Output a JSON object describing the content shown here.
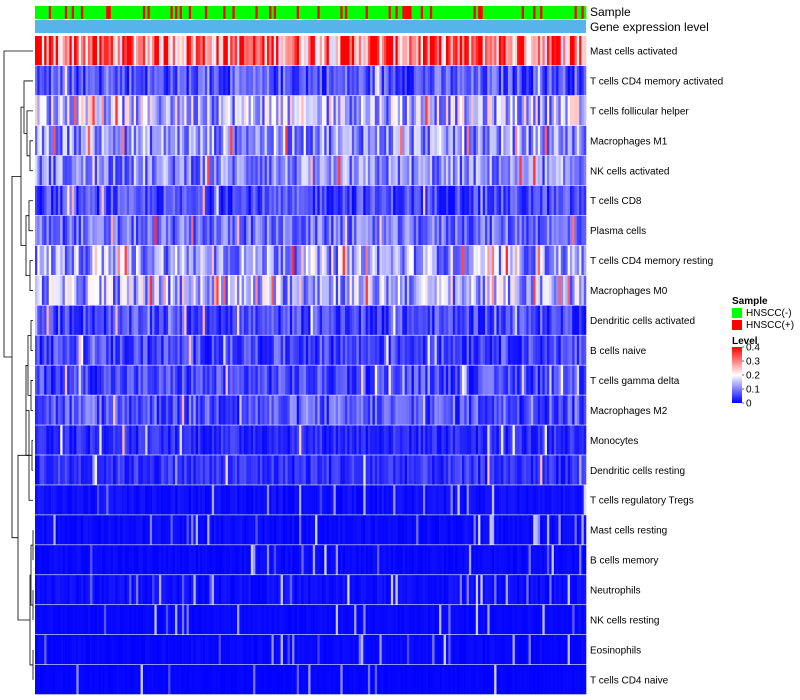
{
  "chart_data": {
    "type": "heatmap",
    "title": "",
    "annotation_rows": [
      {
        "label": "Sample",
        "values": "per-sample group (HNSCC(-) / HNSCC(+))"
      },
      {
        "label": "Gene expression level"
      }
    ],
    "rows": [
      "Mast cells activated",
      "T cells CD4 memory activated",
      "T cells follicular helper",
      "Macrophages M1",
      "NK cells activated",
      "T cells CD8",
      "Plasma cells",
      "T cells CD4 memory resting",
      "Macrophages M0",
      "Dendritic cells activated",
      "B cells naive",
      "T cells gamma delta",
      "Macrophages M2",
      "Monocytes",
      "Dendritic cells resting",
      "T cells regulatory  Tregs",
      "Mast cells resting",
      "B cells memory",
      "Neutrophils",
      "NK cells resting",
      "Eosinophils",
      "T cells CD4 naive"
    ],
    "row_mean_level": [
      0.3,
      0.06,
      0.14,
      0.11,
      0.1,
      0.05,
      0.08,
      0.12,
      0.13,
      0.05,
      0.05,
      0.05,
      0.06,
      0.03,
      0.035,
      0.02,
      0.015,
      0.012,
      0.02,
      0.01,
      0.01,
      0.006
    ],
    "n_samples": 240,
    "legend": {
      "sample": {
        "title": "Sample",
        "entries": [
          {
            "label": "HNSCC(-)",
            "color": "#00ff00"
          },
          {
            "label": "HNSCC(+)",
            "color": "#ff0000"
          }
        ]
      },
      "level": {
        "title": "Level",
        "ticks": [
          "0.4",
          "0.3",
          "0.2",
          "0.1",
          "0"
        ],
        "tick_values": [
          0.4,
          0.3,
          0.2,
          0.1,
          0
        ],
        "range": [
          0,
          0.4
        ],
        "colors": {
          "low": "#0000ff",
          "mid": "#ffffff",
          "high": "#ff0000"
        }
      }
    },
    "annotation_colors": {
      "expression_bar": "#56b4e9"
    }
  }
}
